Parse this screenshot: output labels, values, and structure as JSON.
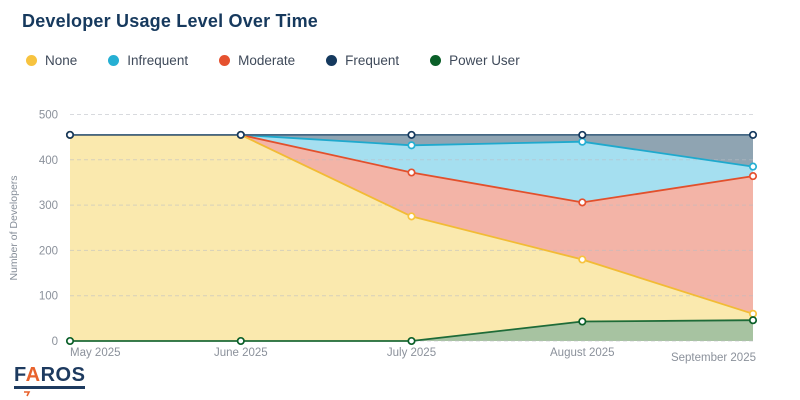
{
  "title": "Developer Usage Level Over Time",
  "background": "#ffffff",
  "logo": {
    "f": "F",
    "a": "A",
    "ros": "ROS"
  },
  "chart_data": {
    "type": "area",
    "variant": "overlapping-areas-with-point-markers",
    "title": "Developer Usage Level Over Time",
    "categories": [
      "May 2025",
      "June 2025",
      "July 2025",
      "August 2025",
      "September 2025"
    ],
    "series": [
      {
        "name": "None",
        "color": "#F7C33F",
        "line": "#F2BB35",
        "fill": "#FAE9AE",
        "values": [
          455,
          455,
          275,
          180,
          60
        ]
      },
      {
        "name": "Infrequent",
        "color": "#25AFD3",
        "line": "#1FA9CD",
        "fill": "#A5DFF0",
        "values": [
          455,
          455,
          432,
          440,
          385
        ]
      },
      {
        "name": "Moderate",
        "color": "#E5512F",
        "line": "#E2502C",
        "fill": "#F3B4A7",
        "values": [
          455,
          455,
          372,
          306,
          364
        ]
      },
      {
        "name": "Frequent",
        "color": "#15395E",
        "line": "#456884",
        "fill": "#8FA4B2",
        "values": [
          455,
          455,
          455,
          455,
          455
        ]
      },
      {
        "name": "Power User",
        "color": "#0A5F28",
        "line": "#1E6B38",
        "fill": "#A7C3A1",
        "values": [
          0,
          0,
          0,
          43,
          46
        ]
      }
    ],
    "xlabel": "",
    "ylabel": "Number of Developers",
    "ylim": [
      0,
      500
    ],
    "yticks": [
      0,
      100,
      200,
      300,
      400,
      500
    ],
    "grid": "horizontal-dashed",
    "grid_color": "#b9bcc4",
    "tick_color": "#8b919b",
    "axis_title_color": "#868e99",
    "legend_position": "top-left",
    "area_paint_order": [
      "Frequent",
      "Infrequent",
      "Moderate",
      "None",
      "Power User"
    ],
    "line_paint_order": [
      "Infrequent",
      "Moderate",
      "None",
      "Frequent",
      "Power User"
    ]
  }
}
